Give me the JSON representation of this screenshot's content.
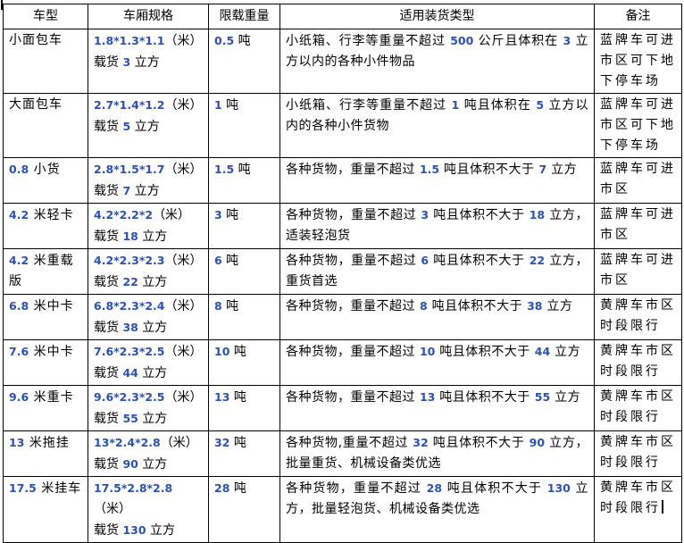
{
  "colors": {
    "background": "#ffffff",
    "border": "#000000",
    "text": "#000000",
    "digit_tint": "#2a52b0"
  },
  "table": {
    "headers": [
      "车型",
      "车厢规格",
      "限载重量",
      "适用装货类型",
      "备注"
    ],
    "rows": [
      {
        "type": "小面包车",
        "spec": "1.8*1.3*1.1（米）\n载货 3 立方",
        "limit": "0.5 吨",
        "cargo": "小纸箱、行李等重量不超过 500 公斤且体积在 3 立方以内的各种小件物品",
        "note": "蓝牌车可进\n市区可下地\n下停车场"
      },
      {
        "type": "大面包车",
        "spec": "2.7*1.4*1.2（米）\n载货 5 立方",
        "limit": "1 吨",
        "cargo": "小纸箱、行李等重量不超过 1 吨且体积在 5 立方以内的各种小件货物",
        "note": "蓝牌车可进\n市区可下地\n下停车场"
      },
      {
        "type": "0.8 小货",
        "spec": "2.8*1.5*1.7（米）\n载货 7 立方",
        "limit": "1.5 吨",
        "cargo": "各种货物，重量不超过 1.5 吨且体积不大于 7 立方",
        "note": "蓝牌车可进\n市区"
      },
      {
        "type": "4.2 米轻卡",
        "spec": "4.2*2.2*2（米）\n载货 18 立方",
        "limit": "3 吨",
        "cargo": "各种货物，重量不超过 3 吨且体积不大于 18 立方，适装轻泡货",
        "note": "蓝牌车可进\n市区"
      },
      {
        "type": "4.2 米重载\n版",
        "spec": "4.2*2.3*2.3（米）\n载货 22 立方",
        "limit": "6 吨",
        "cargo": "各种货物，重量不超过 6 吨且体积不大于 22 立方，重货首选",
        "note": "蓝牌车可进\n市区"
      },
      {
        "type": "6.8 米中卡",
        "spec": "6.8*2.3*2.4（米）\n载货 38 立方",
        "limit": "8 吨",
        "cargo": "各种货物，重量不超过 8 吨且体积不大于 38 立方",
        "note": "黄牌车市区\n时段限行"
      },
      {
        "type": "7.6 米中卡",
        "spec": "7.6*2.3*2.5（米）\n载货 44 立方",
        "limit": "10 吨",
        "cargo": "各种货物，重量不超过 10 吨且体积不大于 44 立方",
        "note": "黄牌车市区\n时段限行"
      },
      {
        "type": "9.6 米重卡",
        "spec": "9.6*2.3*2.5（米）\n载货 55 立方",
        "limit": "13 吨",
        "cargo": "各种货物，重量不超过 13 吨且体积不大于 55 立方",
        "note": "黄牌车市区\n时段限行"
      },
      {
        "type": "13 米拖挂",
        "spec": "13*2.4*2.8（米）\n载货 90 立方",
        "limit": "32 吨",
        "cargo": "各种货物,重量不超过 32 吨且体积不大于 90 立方，批量重货、机械设备类优选",
        "note": "黄牌车市区\n时段限行"
      },
      {
        "type": "17.5 米挂车",
        "spec": "17.5*2.8*2.8（米）\n载货 130 立方",
        "limit": "28 吨",
        "cargo": "各种货物，重量不超过 28 吨且体积不大于 130 立方，批量轻泡货、机械设备类优选",
        "note": "黄牌车市区\n时段限行",
        "caret_after_note": true
      }
    ]
  }
}
